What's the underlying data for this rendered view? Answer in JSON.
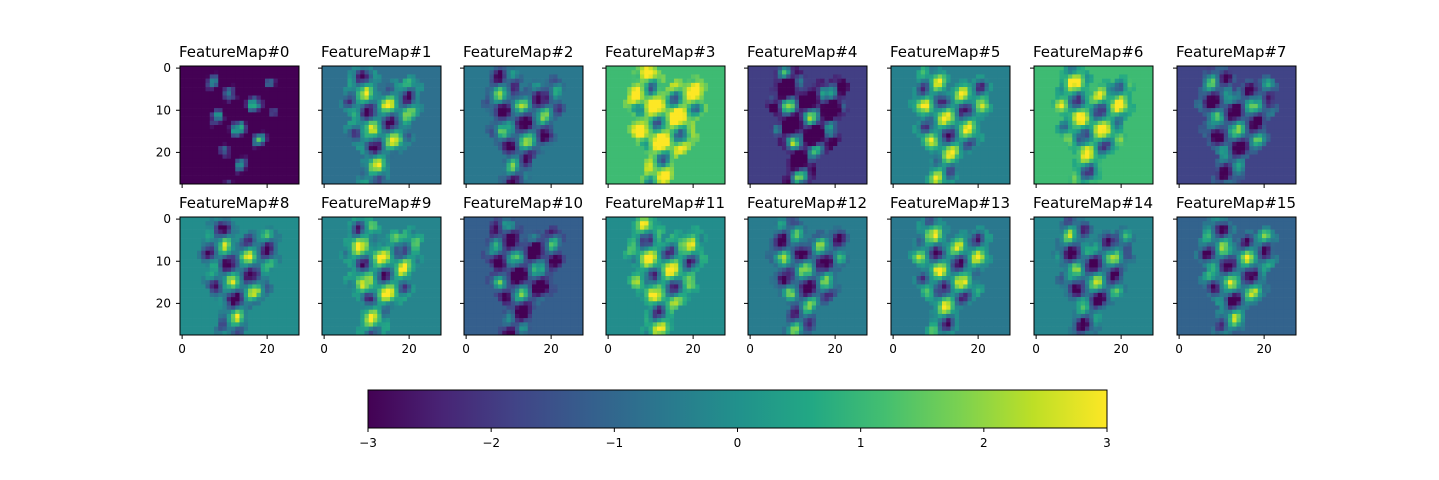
{
  "chart_data": {
    "type": "heatmap",
    "title": "",
    "colormap": "viridis",
    "image_size": [
      28,
      28
    ],
    "grid": false,
    "layout": "2 rows x 8 columns of feature-map panels, horizontal colorbar below",
    "panel_titles": [
      "FeatureMap#0",
      "FeatureMap#1",
      "FeatureMap#2",
      "FeatureMap#3",
      "FeatureMap#4",
      "FeatureMap#5",
      "FeatureMap#6",
      "FeatureMap#7",
      "FeatureMap#8",
      "FeatureMap#9",
      "FeatureMap#10",
      "FeatureMap#11",
      "FeatureMap#12",
      "FeatureMap#13",
      "FeatureMap#14",
      "FeatureMap#15"
    ],
    "panel_background_values": [
      -3.0,
      -0.8,
      -0.6,
      1.1,
      -1.9,
      -0.4,
      1.1,
      -1.8,
      -0.1,
      -0.3,
      -1.2,
      -0.1,
      -0.5,
      -0.6,
      -0.3,
      -1.1
    ],
    "x_ticks": [
      0,
      20
    ],
    "x_tick_labels": [
      "0",
      "20"
    ],
    "y_ticks": [
      0,
      10,
      20
    ],
    "y_tick_labels": [
      "0",
      "10",
      "20"
    ],
    "colorbar": {
      "orientation": "horizontal",
      "vmin": -3,
      "vmax": 3,
      "ticks": [
        -3,
        -2,
        -1,
        0,
        1,
        2,
        3
      ],
      "tick_labels": [
        "−3",
        "−2",
        "−1",
        "0",
        "1",
        "2",
        "3"
      ]
    }
  }
}
